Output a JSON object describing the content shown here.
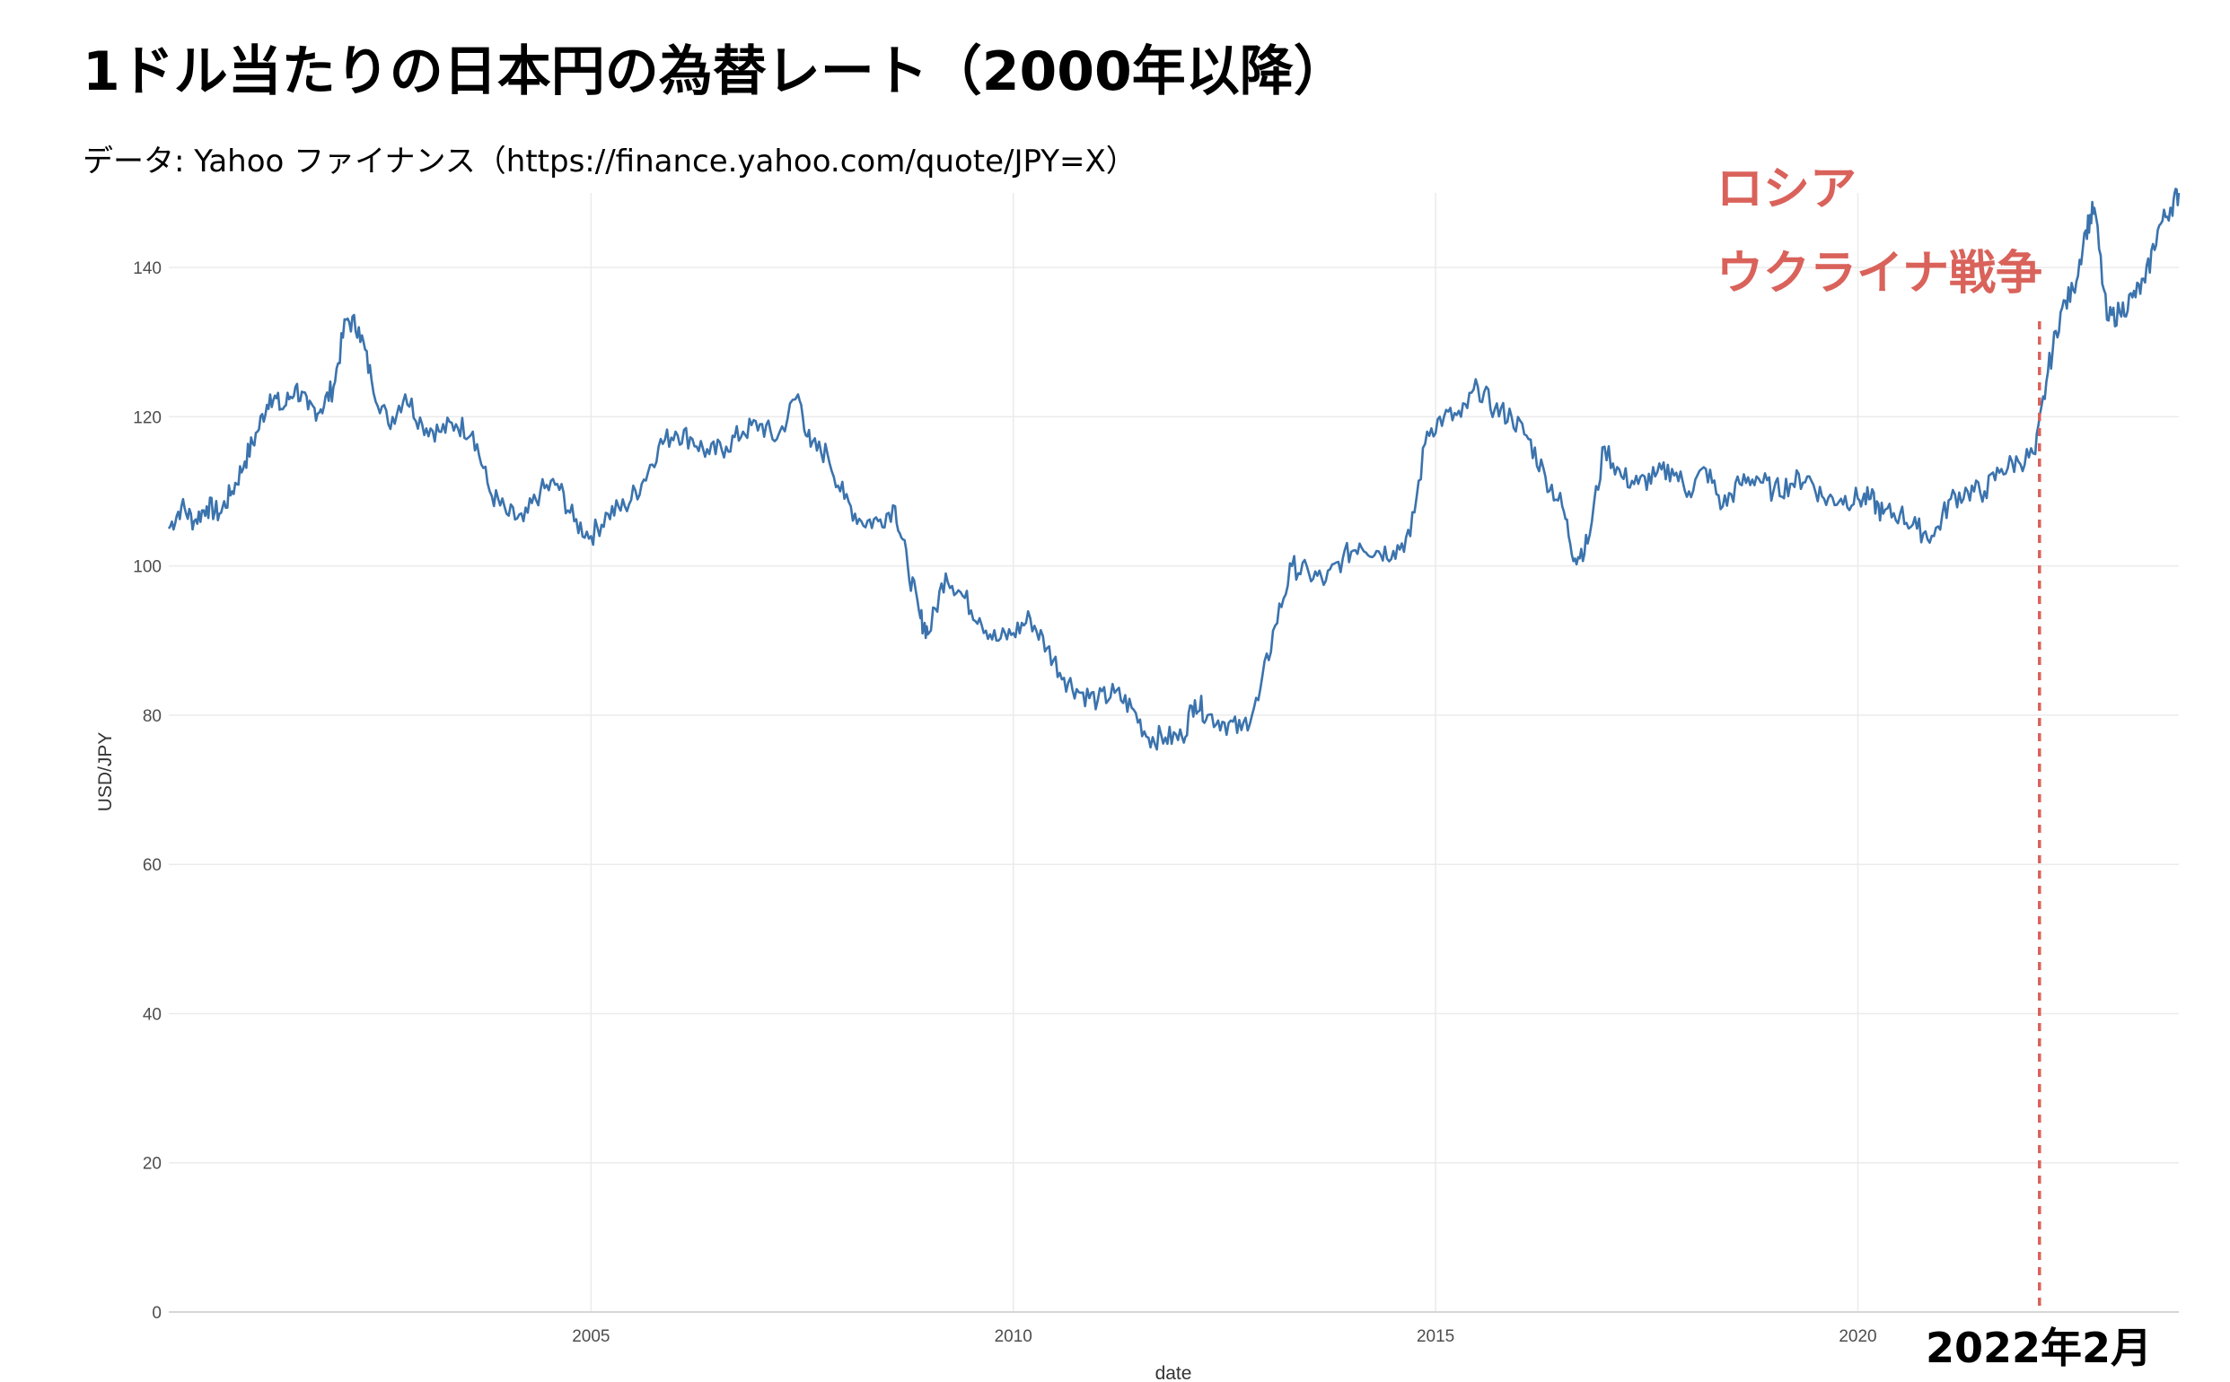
{
  "title": "1ドル当たりの日本円の為替レート（2000年以降）",
  "subtitle": "データ: Yahoo ファイナンス（https://finance.yahoo.com/quote/JPY=X）",
  "annotations": {
    "event_line1": "ロシア",
    "event_line2": "ウクライナ戦争",
    "event_date_label": "2022年2月",
    "event_date": 2022.15
  },
  "colors": {
    "series": "#3b73ad",
    "event": "#d9625a",
    "grid": "#ebebeb"
  },
  "chart_data": {
    "type": "line",
    "xlabel": "date",
    "ylabel": "USD/JPY",
    "x_ticks": [
      2005,
      2010,
      2015,
      2020
    ],
    "y_ticks": [
      0,
      20,
      40,
      60,
      80,
      100,
      120,
      140
    ],
    "xlim": [
      2000.0,
      2023.8
    ],
    "ylim": [
      0,
      150
    ],
    "grid": true,
    "legend": "none",
    "series": [
      {
        "x": [
          2000.0,
          2000.15,
          2000.3,
          2000.45,
          2000.6,
          2000.75,
          2000.9,
          2001.05,
          2001.2,
          2001.35,
          2001.5,
          2001.65,
          2001.8,
          2001.95,
          2002.1,
          2002.25,
          2002.4,
          2002.6,
          2002.8,
          2003.0,
          2003.2,
          2003.4,
          2003.6,
          2003.8,
          2004.0,
          2004.2,
          2004.4,
          2004.6,
          2004.8,
          2005.0,
          2005.2,
          2005.4,
          2005.6,
          2005.8,
          2006.0,
          2006.2,
          2006.4,
          2006.6,
          2006.8,
          2007.0,
          2007.2,
          2007.45,
          2007.6,
          2007.8,
          2008.0,
          2008.2,
          2008.4,
          2008.6,
          2008.75,
          2008.9,
          2009.0,
          2009.2,
          2009.4,
          2009.6,
          2009.8,
          2010.0,
          2010.2,
          2010.4,
          2010.6,
          2010.8,
          2011.0,
          2011.2,
          2011.4,
          2011.6,
          2011.8,
          2012.0,
          2012.15,
          2012.3,
          2012.5,
          2012.7,
          2012.9,
          2013.1,
          2013.3,
          2013.5,
          2013.7,
          2013.9,
          2014.1,
          2014.3,
          2014.5,
          2014.7,
          2014.9,
          2015.1,
          2015.3,
          2015.5,
          2015.7,
          2015.9,
          2016.1,
          2016.3,
          2016.5,
          2016.65,
          2016.8,
          2017.0,
          2017.2,
          2017.4,
          2017.6,
          2017.8,
          2018.0,
          2018.2,
          2018.4,
          2018.6,
          2018.8,
          2019.0,
          2019.2,
          2019.4,
          2019.6,
          2019.8,
          2020.0,
          2020.15,
          2020.3,
          2020.5,
          2020.7,
          2020.9,
          2021.1,
          2021.3,
          2021.5,
          2021.7,
          2021.9,
          2022.1,
          2022.25,
          2022.4,
          2022.55,
          2022.7,
          2022.8,
          2022.95,
          2023.1,
          2023.25,
          2023.4,
          2023.55,
          2023.7,
          2023.8
        ],
        "values": [
          105,
          108,
          106,
          108,
          107,
          110,
          114,
          118,
          123,
          121,
          124,
          121,
          121,
          124,
          133,
          132,
          125,
          119,
          123,
          119,
          118,
          119,
          118,
          110,
          107,
          106,
          110,
          111,
          106,
          104,
          107,
          108,
          111,
          116,
          118,
          117,
          115,
          116,
          118,
          119,
          117,
          123,
          116,
          115,
          109,
          106,
          106,
          108,
          100,
          93,
          91,
          99,
          96,
          93,
          90,
          91,
          93,
          89,
          85,
          83,
          82,
          83,
          81,
          77,
          77,
          77,
          82,
          80,
          79,
          78,
          82,
          92,
          100,
          99,
          98,
          101,
          103,
          102,
          102,
          104,
          118,
          120,
          120,
          124,
          121,
          120,
          117,
          112,
          108,
          101,
          103,
          116,
          112,
          111,
          112,
          113,
          110,
          113,
          108,
          111,
          112,
          110,
          111,
          112,
          109,
          109,
          109,
          109,
          107,
          107,
          105,
          104,
          109,
          110,
          110,
          113,
          114,
          115,
          126,
          134,
          137,
          145,
          148,
          133,
          134,
          136,
          138,
          145,
          148,
          150
        ]
      }
    ]
  }
}
